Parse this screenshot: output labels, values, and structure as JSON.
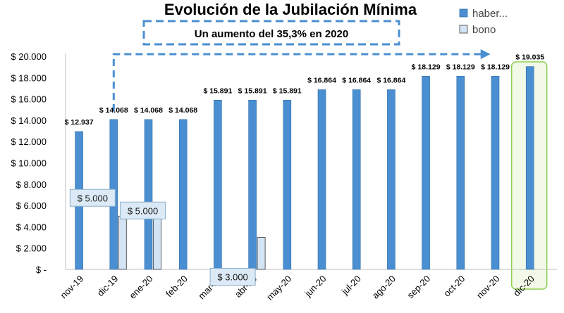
{
  "chart_data": {
    "type": "bar",
    "title": "Evolución de la Jubilación Mínima",
    "subtitle": "Un aumento del 35,3% en 2020",
    "categories": [
      "nov-19",
      "dic-19",
      "ene-20",
      "feb-20",
      "mar-20",
      "abr-20",
      "may-20",
      "jun-20",
      "jul-20",
      "ago-20",
      "sep-20",
      "oct-20",
      "nov-20",
      "dic-20"
    ],
    "series": [
      {
        "name": "haber...",
        "color": "#4a8fd1",
        "values": [
          12937,
          14068,
          14068,
          14068,
          15891,
          15891,
          15891,
          16864,
          16864,
          16864,
          18129,
          18129,
          18129,
          19035
        ],
        "labels": [
          "$ 12.937",
          "$ 14.068",
          "$ 14.068",
          "$ 14.068",
          "$ 15.891",
          "$ 15.891",
          "$ 15.891",
          "$ 16.864",
          "$ 16.864",
          "$ 16.864",
          "$ 18.129",
          "$ 18.129",
          "$ 18.129",
          "$ 19.035"
        ]
      },
      {
        "name": "bono",
        "color": "#d3e4f5",
        "values": [
          null,
          5000,
          5000,
          null,
          null,
          3000,
          null,
          null,
          null,
          null,
          null,
          null,
          null,
          null
        ],
        "labels": [
          null,
          "$ 5.000",
          "$ 5.000",
          null,
          null,
          "$ 3.000",
          null,
          null,
          null,
          null,
          null,
          null,
          null,
          null
        ]
      }
    ],
    "ylim": [
      0,
      20000
    ],
    "yticks": [
      0,
      2000,
      4000,
      6000,
      8000,
      10000,
      12000,
      14000,
      16000,
      18000,
      20000
    ],
    "ytick_labels": [
      "$ -",
      "$ 2.000",
      "$ 4.000",
      "$ 6.000",
      "$ 8.000",
      "$ 10.000",
      "$ 12.000",
      "$ 14.000",
      "$ 16.000",
      "$ 18.000",
      "$ 20.000"
    ],
    "grid": false,
    "legend_position": "top-right",
    "highlight_category": "dic-20"
  }
}
